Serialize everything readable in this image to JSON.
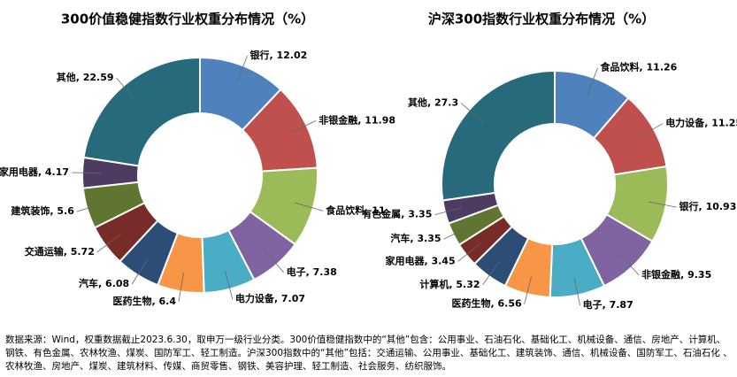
{
  "chart_data": [
    {
      "type": "pie",
      "title": "300价值稳健指数行业权重分布情况（%）",
      "categories": [
        "银行",
        "非银金融",
        "食品饮料",
        "电子",
        "电力设备",
        "医药生物",
        "汽车",
        "交通运输",
        "建筑装饰",
        "家用电器",
        "其他"
      ],
      "values": [
        12.02,
        11.98,
        11.0,
        7.38,
        7.07,
        6.4,
        6.08,
        5.72,
        5.6,
        4.17,
        22.59
      ],
      "colors": [
        "#4f81bd",
        "#c0504d",
        "#9bbb59",
        "#8064a2",
        "#4bacc6",
        "#f79646",
        "#2c4d75",
        "#772c2a",
        "#5f7530",
        "#4d3b62",
        "#276a7c"
      ]
    },
    {
      "type": "pie",
      "title": "沪深300指数行业权重分布情况（%）",
      "categories": [
        "食品饮料",
        "电力设备",
        "银行",
        "非银金融",
        "电子",
        "医药生物",
        "计算机",
        "家用电器",
        "汽车",
        "有色金属",
        "其他"
      ],
      "values": [
        11.26,
        11.25,
        10.93,
        9.35,
        7.87,
        6.56,
        5.32,
        3.45,
        3.35,
        3.35,
        27.3
      ],
      "colors": [
        "#4f81bd",
        "#c0504d",
        "#9bbb59",
        "#8064a2",
        "#4bacc6",
        "#f79646",
        "#2c4d75",
        "#772c2a",
        "#5f7530",
        "#4d3b62",
        "#276a7c"
      ]
    }
  ],
  "footnote": "数据来源：Wind，权重数据截止2023.6.30，取申万一级行业分类。300价值稳健指数中的“其他”包含：公用事业、石油石化、基础化工、机械设备、通信、房地产、计算机、钢铁、有色金属、农林牧渔、煤炭、国防军工、轻工制造。沪深300指数中的“其他”包括：交通运输、公用事业、基础化工、建筑装饰、通信、机械设备、国防军工、石油石化 、农林牧渔、房地产、煤炭、建筑材料、传媒、商贸零售、钢铁、美容护理、轻工制造、社会服务、纺织服饰。"
}
